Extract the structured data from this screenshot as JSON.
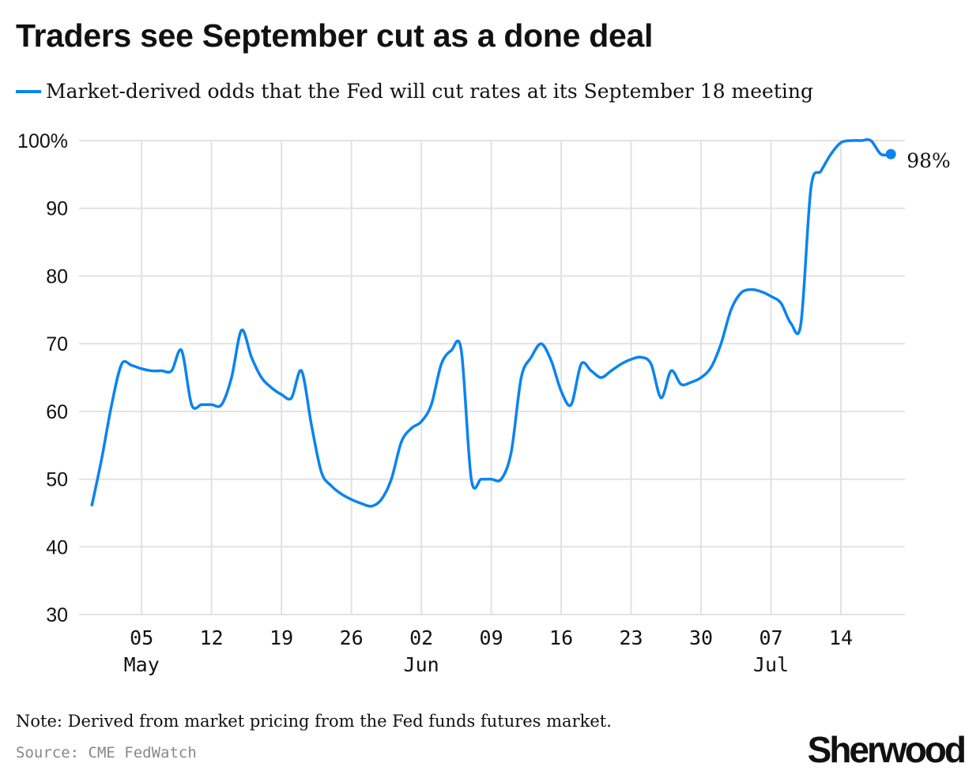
{
  "title": "Traders see September cut as a done deal",
  "legend_label": "Market-derived odds that the Fed will cut rates at its September 18 meeting",
  "note": "Note: Derived from market pricing from the Fed funds futures market.",
  "source": "Source: CME FedWatch",
  "logo": "Sherwood",
  "colors": {
    "line": "#0a84f0",
    "grid": "#e2e2e2"
  },
  "chart_data": {
    "type": "line",
    "title": "Traders see September cut as a done deal",
    "ylabel": "",
    "xlabel": "",
    "ylim": [
      30,
      100
    ],
    "xlim": [
      "2024-04-30",
      "2024-07-19"
    ],
    "grid": true,
    "legend": "top",
    "y_ticks": [
      "100%",
      "90",
      "80",
      "70",
      "60",
      "50",
      "40",
      "30"
    ],
    "x_ticks": [
      {
        "date": "2024-05-05",
        "label": "05",
        "month": "May"
      },
      {
        "date": "2024-05-12",
        "label": "12",
        "month": ""
      },
      {
        "date": "2024-05-19",
        "label": "19",
        "month": ""
      },
      {
        "date": "2024-05-26",
        "label": "26",
        "month": ""
      },
      {
        "date": "2024-06-02",
        "label": "02",
        "month": "Jun"
      },
      {
        "date": "2024-06-09",
        "label": "09",
        "month": ""
      },
      {
        "date": "2024-06-16",
        "label": "16",
        "month": ""
      },
      {
        "date": "2024-06-23",
        "label": "23",
        "month": ""
      },
      {
        "date": "2024-06-30",
        "label": "30",
        "month": ""
      },
      {
        "date": "2024-07-07",
        "label": "07",
        "month": "Jul"
      },
      {
        "date": "2024-07-14",
        "label": "14",
        "month": ""
      }
    ],
    "end_label": "98%",
    "series": [
      {
        "x": [
          "2024-04-30",
          "2024-05-01",
          "2024-05-02",
          "2024-05-03",
          "2024-05-04",
          "2024-05-05",
          "2024-05-06",
          "2024-05-07",
          "2024-05-08",
          "2024-05-09",
          "2024-05-10",
          "2024-05-11",
          "2024-05-12",
          "2024-05-13",
          "2024-05-14",
          "2024-05-15",
          "2024-05-16",
          "2024-05-17",
          "2024-05-18",
          "2024-05-19",
          "2024-05-20",
          "2024-05-21",
          "2024-05-22",
          "2024-05-23",
          "2024-05-24",
          "2024-05-25",
          "2024-05-26",
          "2024-05-27",
          "2024-05-28",
          "2024-05-29",
          "2024-05-30",
          "2024-05-31",
          "2024-06-01",
          "2024-06-02",
          "2024-06-03",
          "2024-06-04",
          "2024-06-05",
          "2024-06-06",
          "2024-06-07",
          "2024-06-08",
          "2024-06-09",
          "2024-06-10",
          "2024-06-11",
          "2024-06-12",
          "2024-06-13",
          "2024-06-14",
          "2024-06-15",
          "2024-06-16",
          "2024-06-17",
          "2024-06-18",
          "2024-06-19",
          "2024-06-20",
          "2024-06-21",
          "2024-06-22",
          "2024-06-23",
          "2024-06-24",
          "2024-06-25",
          "2024-06-26",
          "2024-06-27",
          "2024-06-28",
          "2024-06-29",
          "2024-06-30",
          "2024-07-01",
          "2024-07-02",
          "2024-07-03",
          "2024-07-04",
          "2024-07-05",
          "2024-07-06",
          "2024-07-07",
          "2024-07-08",
          "2024-07-09",
          "2024-07-10",
          "2024-07-11",
          "2024-07-12",
          "2024-07-13",
          "2024-07-14",
          "2024-07-15",
          "2024-07-16",
          "2024-07-17",
          "2024-07-18",
          "2024-07-19"
        ],
        "values": [
          46,
          53,
          61,
          67,
          66.8,
          66.3,
          66,
          66,
          66,
          69,
          61,
          61,
          61,
          61,
          65,
          72,
          68,
          65,
          63.5,
          62.5,
          62,
          66,
          58,
          51,
          49,
          47.8,
          47,
          46.4,
          46,
          47,
          50,
          55.5,
          57.5,
          58.5,
          61,
          67,
          69,
          69,
          50,
          50,
          50,
          50,
          54,
          65,
          68,
          70,
          67.5,
          63,
          61,
          67,
          66,
          65,
          66,
          67,
          67.7,
          68,
          67,
          62,
          66,
          64,
          64.3,
          65,
          66.5,
          70,
          75,
          77.5,
          78,
          77.7,
          77,
          76,
          73,
          73,
          93,
          95.5,
          98,
          99.7,
          100,
          100,
          100,
          98,
          98
        ]
      }
    ]
  }
}
